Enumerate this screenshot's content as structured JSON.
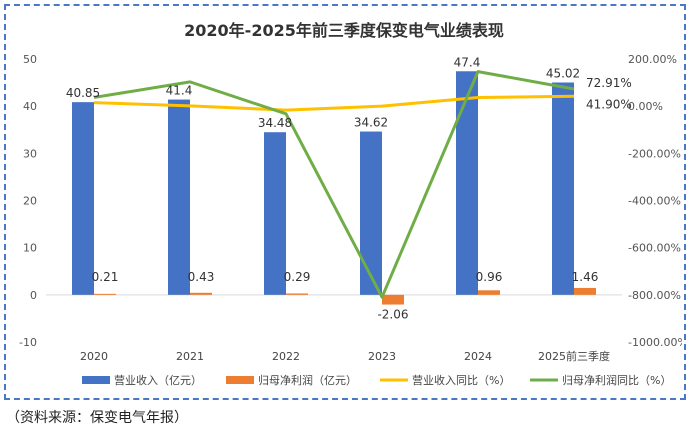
{
  "chart_data": {
    "type": "bar",
    "title": "2020年-2025年前三季度保变电气业绩表现",
    "categories": [
      "2020",
      "2021",
      "2022",
      "2023",
      "2024",
      "2025前三季度"
    ],
    "y_left": {
      "min": -10,
      "max": 50,
      "step": 10,
      "ticks": [
        "-10",
        "0",
        "10",
        "20",
        "30",
        "40",
        "50"
      ]
    },
    "y_right": {
      "min": -1000,
      "max": 200,
      "step": 200,
      "ticks": [
        "-1000.00%",
        "-800.00%",
        "-600.00%",
        "-400.00%",
        "-200.00%",
        "0.00%",
        "200.00%"
      ]
    },
    "series": [
      {
        "name": "营业收入（亿元）",
        "kind": "bar",
        "axis": "left",
        "color": "#4472c4",
        "values": [
          40.85,
          41.4,
          34.48,
          34.62,
          47.4,
          45.02
        ],
        "labels": [
          "40.85",
          "41.4",
          "34.48",
          "34.62",
          "47.4",
          "45.02"
        ]
      },
      {
        "name": "归母净利润（亿元）",
        "kind": "bar",
        "axis": "left",
        "color": "#ed7d31",
        "values": [
          0.21,
          0.43,
          0.29,
          -2.06,
          0.96,
          1.46
        ],
        "labels": [
          "0.21",
          "0.43",
          "0.29",
          "-2.06",
          "0.96",
          "1.46"
        ]
      },
      {
        "name": "营业收入同比（%）",
        "kind": "line",
        "axis": "right",
        "color": "#ffc000",
        "values": [
          15.0,
          1.3,
          -16.7,
          0.4,
          36.9,
          41.9
        ],
        "labels": [
          "",
          "",
          "",
          "",
          "",
          "41.90%"
        ]
      },
      {
        "name": "归母净利润同比（%）",
        "kind": "line",
        "axis": "right",
        "color": "#70ad47",
        "values": [
          37.0,
          103.0,
          -32.6,
          -810.0,
          146.6,
          72.91
        ],
        "labels": [
          "",
          "",
          "",
          "",
          "",
          "72.91%"
        ]
      }
    ],
    "legend_position": "bottom",
    "grid": false
  },
  "source_note": "（资料来源：保变电气年报）"
}
